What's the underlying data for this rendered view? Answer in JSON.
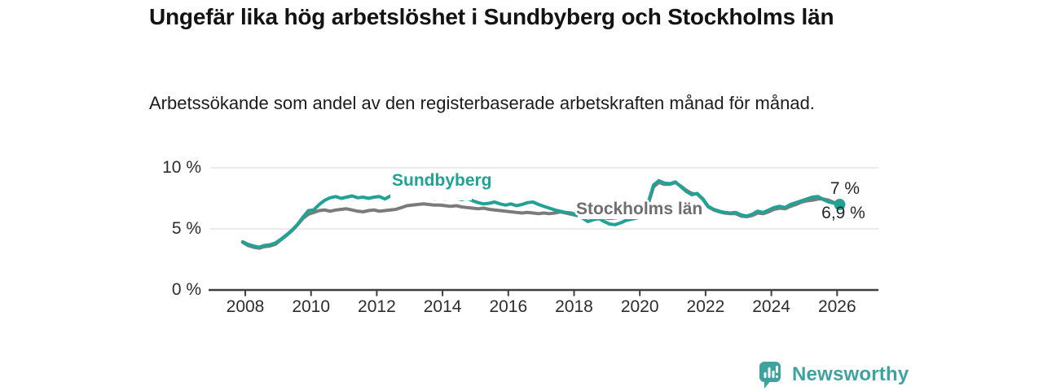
{
  "header": {
    "title": "Ungefär lika hög arbetslöshet i Sundbyberg och Stockholms län",
    "subtitle": "Arbetssökande som andel av den registerbaserade arbetskraften månad för månad."
  },
  "chart_data": {
    "type": "line",
    "title": "Ungefär lika hög arbetslöshet i Sundbyberg och Stockholms län",
    "subtitle": "Arbetssökande som andel av den registerbaserade arbetskraften månad för månad.",
    "unit": "%",
    "xlabel": "",
    "ylabel": "",
    "ylim": [
      0,
      10
    ],
    "grid": "horizontal",
    "legend": "inline-labels",
    "yticks": [
      {
        "value": 0,
        "label": "0 %"
      },
      {
        "value": 5,
        "label": "5 %"
      },
      {
        "value": 10,
        "label": "10 %"
      }
    ],
    "xticks": [
      {
        "value": 2008,
        "label": "2008"
      },
      {
        "value": 2010,
        "label": "2010"
      },
      {
        "value": 2012,
        "label": "2012"
      },
      {
        "value": 2014,
        "label": "2014"
      },
      {
        "value": 2016,
        "label": "2016"
      },
      {
        "value": 2018,
        "label": "2018"
      },
      {
        "value": 2020,
        "label": "2020"
      },
      {
        "value": 2022,
        "label": "2022"
      },
      {
        "value": 2024,
        "label": "2024"
      },
      {
        "value": 2026,
        "label": "2026"
      }
    ],
    "x": [
      2007.92,
      2008.08,
      2008.25,
      2008.42,
      2008.58,
      2008.75,
      2008.92,
      2009.08,
      2009.25,
      2009.42,
      2009.58,
      2009.75,
      2009.92,
      2010.08,
      2010.25,
      2010.42,
      2010.58,
      2010.75,
      2010.92,
      2011.08,
      2011.25,
      2011.42,
      2011.58,
      2011.75,
      2011.92,
      2012.08,
      2012.25,
      2012.42,
      2012.58,
      2012.75,
      2012.92,
      2013.08,
      2013.25,
      2013.42,
      2013.58,
      2013.75,
      2013.92,
      2014.08,
      2014.25,
      2014.42,
      2014.58,
      2014.75,
      2014.92,
      2015.08,
      2015.25,
      2015.42,
      2015.58,
      2015.75,
      2015.92,
      2016.08,
      2016.25,
      2016.42,
      2016.58,
      2016.75,
      2016.92,
      2017.08,
      2017.25,
      2017.42,
      2017.58,
      2017.75,
      2017.92,
      2018.08,
      2018.25,
      2018.42,
      2018.58,
      2018.75,
      2018.92,
      2019.08,
      2019.25,
      2019.42,
      2019.58,
      2019.75,
      2019.92,
      2020.08,
      2020.25,
      2020.42,
      2020.58,
      2020.75,
      2020.92,
      2021.08,
      2021.25,
      2021.42,
      2021.58,
      2021.75,
      2021.92,
      2022.08,
      2022.25,
      2022.42,
      2022.58,
      2022.75,
      2022.92,
      2023.08,
      2023.25,
      2023.42,
      2023.58,
      2023.75,
      2023.92,
      2024.08,
      2024.25,
      2024.42,
      2024.58,
      2024.75,
      2024.92,
      2025.08,
      2025.25,
      2025.42,
      2025.58,
      2025.75,
      2025.92,
      2026.08
    ],
    "series": [
      {
        "name": "Sundbyberg",
        "color": "#21A295",
        "end_value": 7.0,
        "end_label": "7 %",
        "values": [
          3.95,
          3.75,
          3.6,
          3.5,
          3.65,
          3.7,
          3.85,
          4.15,
          4.5,
          4.9,
          5.35,
          5.95,
          6.5,
          6.55,
          7.0,
          7.35,
          7.55,
          7.65,
          7.5,
          7.6,
          7.7,
          7.55,
          7.6,
          7.5,
          7.6,
          7.65,
          7.45,
          7.7,
          7.55,
          7.6,
          7.65,
          7.55,
          7.6,
          7.5,
          7.55,
          7.45,
          7.5,
          7.45,
          7.55,
          7.5,
          7.4,
          7.5,
          7.3,
          7.15,
          7.05,
          7.1,
          7.2,
          7.05,
          6.95,
          7.05,
          6.9,
          7.0,
          7.15,
          7.2,
          7.0,
          6.85,
          6.7,
          6.55,
          6.45,
          6.35,
          6.3,
          6.15,
          5.9,
          5.6,
          5.75,
          5.85,
          5.6,
          5.4,
          5.35,
          5.5,
          5.7,
          5.8,
          5.9,
          6.1,
          7.1,
          8.6,
          8.95,
          8.75,
          8.7,
          8.85,
          8.45,
          8.05,
          7.8,
          7.9,
          7.45,
          6.85,
          6.6,
          6.45,
          6.35,
          6.3,
          6.35,
          6.15,
          6.05,
          6.2,
          6.45,
          6.35,
          6.55,
          6.75,
          6.85,
          6.75,
          7.0,
          7.15,
          7.3,
          7.45,
          7.6,
          7.65,
          7.4,
          7.2,
          7.1,
          7.0
        ]
      },
      {
        "name": "Stockholms län",
        "color": "#7B7B7B",
        "end_value": 6.9,
        "end_label": "6,9 %",
        "values": [
          3.9,
          3.65,
          3.5,
          3.42,
          3.55,
          3.6,
          3.75,
          4.1,
          4.45,
          4.85,
          5.3,
          5.85,
          6.2,
          6.35,
          6.5,
          6.55,
          6.45,
          6.55,
          6.6,
          6.65,
          6.55,
          6.45,
          6.4,
          6.5,
          6.55,
          6.45,
          6.5,
          6.55,
          6.6,
          6.75,
          6.9,
          6.95,
          7.0,
          7.05,
          7.0,
          6.95,
          6.95,
          6.9,
          6.85,
          6.9,
          6.8,
          6.75,
          6.7,
          6.65,
          6.7,
          6.6,
          6.55,
          6.5,
          6.45,
          6.4,
          6.35,
          6.3,
          6.35,
          6.3,
          6.25,
          6.3,
          6.25,
          6.3,
          6.4,
          6.3,
          6.2,
          6.1,
          6.0,
          5.95,
          5.9,
          5.95,
          5.9,
          5.85,
          5.9,
          5.95,
          6.0,
          6.0,
          6.05,
          6.2,
          7.0,
          8.45,
          8.8,
          8.65,
          8.65,
          8.8,
          8.5,
          8.15,
          7.9,
          7.85,
          7.4,
          6.8,
          6.55,
          6.4,
          6.3,
          6.25,
          6.25,
          6.05,
          6.0,
          6.1,
          6.3,
          6.25,
          6.4,
          6.6,
          6.7,
          6.65,
          6.85,
          7.0,
          7.2,
          7.3,
          7.35,
          7.45,
          7.45,
          7.35,
          7.15,
          6.9
        ]
      }
    ]
  },
  "colors": {
    "teal": "#21A295",
    "gray": "#7B7B7B",
    "gray_label": "#6F6F6F",
    "axis": "#3F3F3F",
    "grid": "#E4E4E4",
    "text": "#131313"
  },
  "footer": {
    "brand_name": "Newsworthy",
    "logo_icon": "bar-chart-speech-bubble-icon"
  }
}
